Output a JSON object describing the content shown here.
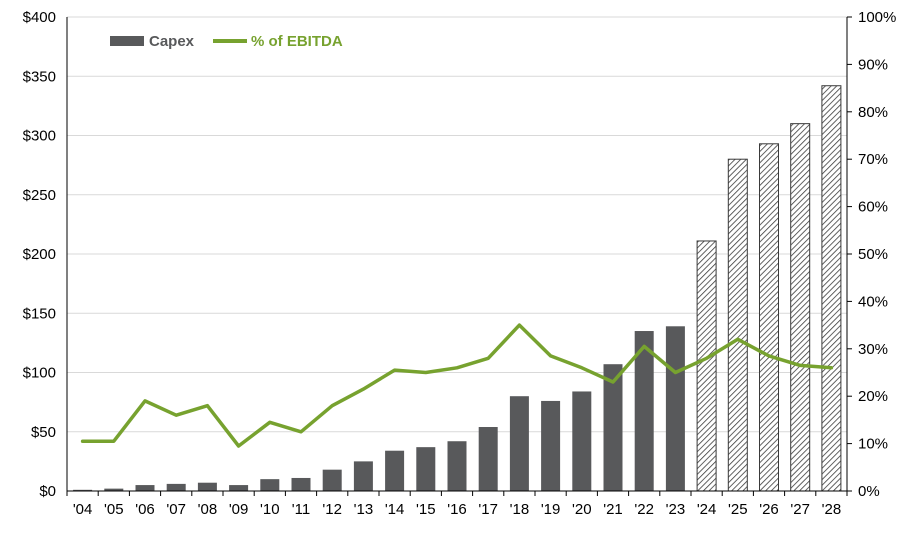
{
  "chart_data": {
    "type": "bar",
    "categories": [
      "'04",
      "'05",
      "'06",
      "'07",
      "'08",
      "'09",
      "'10",
      "'11",
      "'12",
      "'13",
      "'14",
      "'15",
      "'16",
      "'17",
      "'18",
      "'19",
      "'20",
      "'21",
      "'22",
      "'23",
      "'24",
      "'25",
      "'26",
      "'27",
      "'28"
    ],
    "series": [
      {
        "name": "Capex",
        "type": "bar",
        "axis": "left",
        "color": "#58595b",
        "values": [
          1,
          2,
          5,
          6,
          7,
          5,
          10,
          11,
          18,
          25,
          34,
          37,
          42,
          54,
          80,
          76,
          84,
          107,
          135,
          139,
          211,
          280,
          293,
          310,
          342
        ],
        "projected_from_index": 20
      },
      {
        "name": "% of EBITDA",
        "type": "line",
        "axis": "right",
        "color": "#77a22f",
        "values": [
          10.5,
          10.5,
          19,
          16,
          18,
          9.5,
          14.5,
          12.5,
          18,
          21.5,
          25.5,
          25,
          26,
          28,
          35,
          28.5,
          26,
          23,
          30.5,
          25,
          28,
          32,
          28.5,
          26.5,
          26
        ]
      }
    ],
    "y_left": {
      "ylim": [
        0,
        400
      ],
      "ticks": [
        0,
        50,
        100,
        150,
        200,
        250,
        300,
        350,
        400
      ],
      "tick_labels": [
        "$0",
        "$50",
        "$100",
        "$150",
        "$200",
        "$250",
        "$300",
        "$350",
        "$400"
      ]
    },
    "y_right": {
      "ylim": [
        0,
        100
      ],
      "ticks": [
        0,
        10,
        20,
        30,
        40,
        50,
        60,
        70,
        80,
        90,
        100
      ],
      "tick_labels": [
        "0%",
        "10%",
        "20%",
        "30%",
        "40%",
        "50%",
        "60%",
        "70%",
        "80%",
        "90%",
        "100%"
      ]
    },
    "grid": true,
    "legend": {
      "placement": "top-left",
      "entries": [
        "Capex",
        "% of EBITDA"
      ]
    }
  }
}
